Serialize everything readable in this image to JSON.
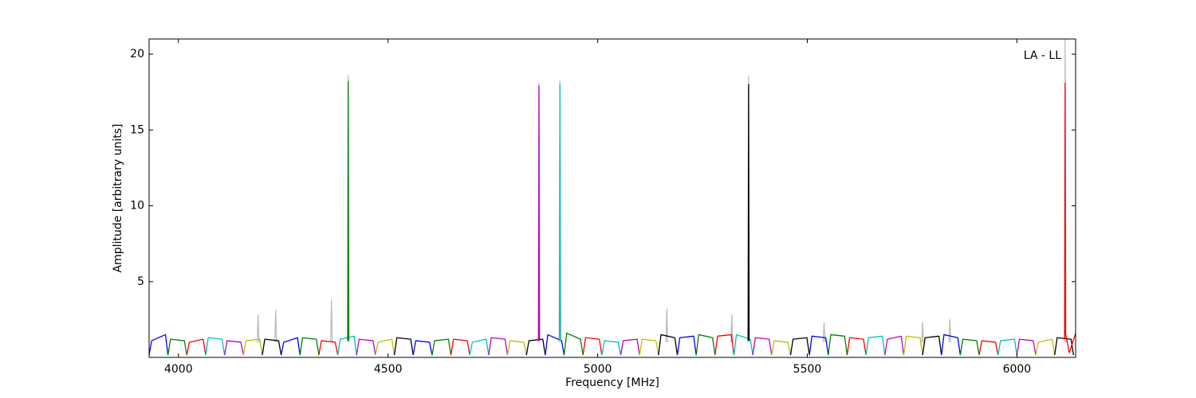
{
  "chart_data": {
    "type": "line",
    "annotation": "LA - LL",
    "xlabel": "Frequency [MHz]",
    "ylabel": "Amplitude [arbitrary units]",
    "xlim": [
      3930,
      6140
    ],
    "ylim": [
      0,
      21
    ],
    "xticks": [
      4000,
      4500,
      5000,
      5500,
      6000
    ],
    "yticks": [
      5,
      10,
      15,
      20
    ],
    "series": [
      {
        "color": "#bbbbbb",
        "x": [
          4188,
          4190,
          4192,
          null,
          4230,
          4232,
          4234,
          null,
          4363,
          4365,
          4367,
          null,
          4403,
          4405,
          4407,
          null,
          4858,
          4860,
          4862,
          null,
          4908,
          4910,
          4912,
          null,
          5163,
          5165,
          5167,
          null,
          5318,
          5320,
          5322,
          null,
          5358,
          5360,
          5362,
          null,
          5538,
          5540,
          5542,
          null,
          5773,
          5775,
          5777,
          null,
          5838,
          5840,
          5842,
          null,
          6113,
          6115,
          6117
        ],
        "values": [
          1.0,
          2.8,
          1.0,
          null,
          1.0,
          3.1,
          1.0,
          null,
          1.0,
          3.8,
          1.0,
          null,
          1.0,
          18.6,
          1.0,
          null,
          1.0,
          18.1,
          1.0,
          null,
          1.0,
          18.2,
          1.0,
          null,
          1.0,
          3.2,
          1.0,
          null,
          1.0,
          2.8,
          1.0,
          null,
          1.0,
          18.5,
          1.0,
          null,
          1.0,
          2.3,
          1.0,
          null,
          1.0,
          2.3,
          1.0,
          null,
          1.0,
          2.5,
          1.0,
          null,
          1.0,
          21,
          1.0
        ]
      },
      {
        "color": "#0000ff",
        "x": [
          3930,
          3936,
          3969,
          3975
        ],
        "values": [
          0.15,
          1.1,
          1.5,
          0.15
        ]
      },
      {
        "color": "#008000",
        "x": [
          3975,
          3981,
          4014,
          4020
        ],
        "values": [
          0.15,
          1.2,
          1.1,
          0.15
        ]
      },
      {
        "color": "#ff0000",
        "x": [
          4020,
          4026,
          4059,
          4065
        ],
        "values": [
          0.15,
          1.0,
          1.2,
          0.15
        ]
      },
      {
        "color": "#00bfbf",
        "x": [
          4065,
          4071,
          4104,
          4110
        ],
        "values": [
          0.15,
          1.3,
          1.2,
          0.15
        ]
      },
      {
        "color": "#bf00bf",
        "x": [
          4110,
          4116,
          4149,
          4155
        ],
        "values": [
          0.15,
          1.1,
          1.0,
          0.15
        ]
      },
      {
        "color": "#bfbf00",
        "x": [
          4155,
          4161,
          4194,
          4200
        ],
        "values": [
          0.15,
          1.1,
          1.2,
          0.15
        ]
      },
      {
        "color": "#000000",
        "x": [
          4200,
          4206,
          4239,
          4245
        ],
        "values": [
          0.15,
          1.2,
          1.1,
          0.15
        ]
      },
      {
        "color": "#0000ff",
        "x": [
          4245,
          4251,
          4284,
          4290
        ],
        "values": [
          0.15,
          1.0,
          1.3,
          0.15
        ]
      },
      {
        "color": "#008000",
        "x": [
          4290,
          4296,
          4329,
          4335
        ],
        "values": [
          0.15,
          1.3,
          1.2,
          0.15
        ]
      },
      {
        "color": "#ff0000",
        "x": [
          4335,
          4341,
          4374,
          4380
        ],
        "values": [
          0.15,
          1.1,
          1.0,
          0.15
        ]
      },
      {
        "color": "#00bfbf",
        "x": [
          4380,
          4386,
          4419,
          4425
        ],
        "values": [
          0.15,
          1.2,
          1.4,
          0.15
        ]
      },
      {
        "color": "#bf00bf",
        "x": [
          4425,
          4431,
          4464,
          4470
        ],
        "values": [
          0.15,
          1.2,
          1.1,
          0.15
        ]
      },
      {
        "color": "#bfbf00",
        "x": [
          4470,
          4476,
          4509,
          4515
        ],
        "values": [
          0.15,
          1.0,
          1.2,
          0.15
        ]
      },
      {
        "color": "#000000",
        "x": [
          4515,
          4521,
          4554,
          4560
        ],
        "values": [
          0.15,
          1.3,
          1.2,
          0.15
        ]
      },
      {
        "color": "#0000ff",
        "x": [
          4560,
          4566,
          4599,
          4605
        ],
        "values": [
          0.15,
          1.1,
          1.0,
          0.15
        ]
      },
      {
        "color": "#008000",
        "x": [
          4605,
          4611,
          4644,
          4650
        ],
        "values": [
          0.15,
          1.1,
          1.2,
          0.15
        ]
      },
      {
        "color": "#ff0000",
        "x": [
          4650,
          4656,
          4689,
          4695
        ],
        "values": [
          0.15,
          1.2,
          1.1,
          0.15
        ]
      },
      {
        "color": "#00bfbf",
        "x": [
          4695,
          4701,
          4734,
          4740
        ],
        "values": [
          0.15,
          1.0,
          1.2,
          0.15
        ]
      },
      {
        "color": "#bf00bf",
        "x": [
          4740,
          4746,
          4779,
          4785
        ],
        "values": [
          0.15,
          1.3,
          1.2,
          0.15
        ]
      },
      {
        "color": "#bfbf00",
        "x": [
          4785,
          4791,
          4824,
          4830
        ],
        "values": [
          0.15,
          1.1,
          1.0,
          0.15
        ]
      },
      {
        "color": "#000000",
        "x": [
          4830,
          4836,
          4869,
          4875
        ],
        "values": [
          0.15,
          1.1,
          1.2,
          0.15
        ]
      },
      {
        "color": "#0000ff",
        "x": [
          4875,
          4881,
          4914,
          4920
        ],
        "values": [
          0.15,
          1.5,
          1.1,
          0.15
        ]
      },
      {
        "color": "#008000",
        "x": [
          4920,
          4926,
          4959,
          4965
        ],
        "values": [
          0.15,
          1.6,
          1.2,
          0.15
        ]
      },
      {
        "color": "#ff0000",
        "x": [
          4965,
          4971,
          5004,
          5010
        ],
        "values": [
          0.15,
          1.3,
          1.2,
          0.15
        ]
      },
      {
        "color": "#00bfbf",
        "x": [
          5010,
          5016,
          5049,
          5055
        ],
        "values": [
          0.15,
          1.1,
          1.0,
          0.15
        ]
      },
      {
        "color": "#bf00bf",
        "x": [
          5055,
          5061,
          5094,
          5100
        ],
        "values": [
          0.15,
          1.1,
          1.2,
          0.15
        ]
      },
      {
        "color": "#bfbf00",
        "x": [
          5100,
          5106,
          5139,
          5145
        ],
        "values": [
          0.15,
          1.2,
          1.1,
          0.15
        ]
      },
      {
        "color": "#000000",
        "x": [
          5145,
          5151,
          5184,
          5190
        ],
        "values": [
          0.15,
          1.5,
          1.3,
          0.15
        ]
      },
      {
        "color": "#0000ff",
        "x": [
          5190,
          5196,
          5229,
          5235
        ],
        "values": [
          0.15,
          1.3,
          1.4,
          0.15
        ]
      },
      {
        "color": "#008000",
        "x": [
          5235,
          5241,
          5274,
          5280
        ],
        "values": [
          0.15,
          1.5,
          1.3,
          0.15
        ]
      },
      {
        "color": "#ff0000",
        "x": [
          5280,
          5286,
          5319,
          5325
        ],
        "values": [
          0.15,
          1.4,
          1.5,
          0.15
        ]
      },
      {
        "color": "#00bfbf",
        "x": [
          5325,
          5331,
          5364,
          5370
        ],
        "values": [
          0.15,
          1.5,
          1.2,
          0.15
        ]
      },
      {
        "color": "#bf00bf",
        "x": [
          5370,
          5376,
          5409,
          5415
        ],
        "values": [
          0.15,
          1.3,
          1.2,
          0.15
        ]
      },
      {
        "color": "#bfbf00",
        "x": [
          5415,
          5421,
          5454,
          5460
        ],
        "values": [
          0.15,
          1.1,
          1.0,
          0.15
        ]
      },
      {
        "color": "#000000",
        "x": [
          5460,
          5466,
          5499,
          5505
        ],
        "values": [
          0.15,
          1.2,
          1.3,
          0.15
        ]
      },
      {
        "color": "#0000ff",
        "x": [
          5505,
          5511,
          5544,
          5550
        ],
        "values": [
          0.15,
          1.4,
          1.3,
          0.15
        ]
      },
      {
        "color": "#008000",
        "x": [
          5550,
          5556,
          5589,
          5595
        ],
        "values": [
          0.15,
          1.5,
          1.4,
          0.15
        ]
      },
      {
        "color": "#ff0000",
        "x": [
          5595,
          5601,
          5634,
          5640
        ],
        "values": [
          0.15,
          1.3,
          1.2,
          0.15
        ]
      },
      {
        "color": "#00bfbf",
        "x": [
          5640,
          5646,
          5679,
          5685
        ],
        "values": [
          0.15,
          1.3,
          1.4,
          0.15
        ]
      },
      {
        "color": "#bf00bf",
        "x": [
          5685,
          5691,
          5724,
          5730
        ],
        "values": [
          0.15,
          1.2,
          1.4,
          0.15
        ]
      },
      {
        "color": "#bfbf00",
        "x": [
          5730,
          5736,
          5769,
          5775
        ],
        "values": [
          0.15,
          1.4,
          1.3,
          0.15
        ]
      },
      {
        "color": "#000000",
        "x": [
          5775,
          5781,
          5814,
          5820
        ],
        "values": [
          0.15,
          1.3,
          1.4,
          0.15
        ]
      },
      {
        "color": "#0000ff",
        "x": [
          5820,
          5826,
          5859,
          5865
        ],
        "values": [
          0.15,
          1.5,
          1.3,
          0.15
        ]
      },
      {
        "color": "#008000",
        "x": [
          5865,
          5871,
          5904,
          5910
        ],
        "values": [
          0.15,
          1.2,
          1.1,
          0.15
        ]
      },
      {
        "color": "#ff0000",
        "x": [
          5910,
          5916,
          5949,
          5955
        ],
        "values": [
          0.15,
          1.1,
          1.0,
          0.15
        ]
      },
      {
        "color": "#00bfbf",
        "x": [
          5955,
          5961,
          5994,
          6000
        ],
        "values": [
          0.15,
          1.1,
          1.2,
          0.15
        ]
      },
      {
        "color": "#bf00bf",
        "x": [
          6000,
          6006,
          6039,
          6045
        ],
        "values": [
          0.15,
          1.2,
          1.1,
          0.15
        ]
      },
      {
        "color": "#bfbf00",
        "x": [
          6045,
          6051,
          6084,
          6090
        ],
        "values": [
          0.15,
          1.0,
          1.2,
          0.15
        ]
      },
      {
        "color": "#000000",
        "x": [
          6090,
          6096,
          6129,
          6135
        ],
        "values": [
          0.15,
          1.3,
          1.2,
          0.15
        ]
      },
      {
        "color": "#008000",
        "x": [
          4404,
          4405,
          4406
        ],
        "values": [
          1.1,
          18.2,
          1.1
        ]
      },
      {
        "color": "#bf00bf",
        "x": [
          4859,
          4860,
          4861
        ],
        "values": [
          1.1,
          17.9,
          1.1
        ]
      },
      {
        "color": "#00bfbf",
        "x": [
          4909,
          4910,
          4911
        ],
        "values": [
          1.1,
          18.0,
          1.1
        ]
      },
      {
        "color": "#000000",
        "x": [
          5359,
          5360,
          5361
        ],
        "values": [
          1.1,
          18.0,
          1.1
        ]
      },
      {
        "color": "#ff0000",
        "x": [
          6114,
          6115,
          6116,
          6125,
          6140
        ],
        "values": [
          1.2,
          18.1,
          1.6,
          0.3,
          1.6
        ]
      }
    ]
  }
}
